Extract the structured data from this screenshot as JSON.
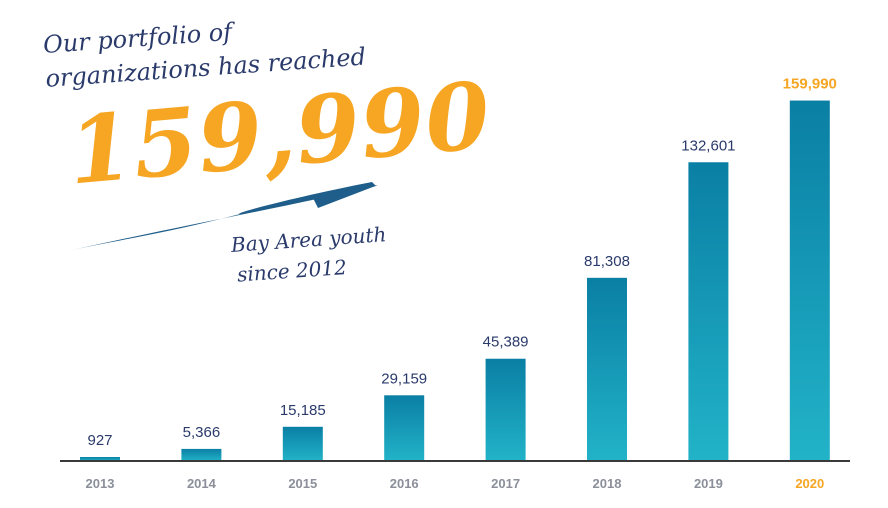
{
  "headline": {
    "intro_line1": "Our portfolio of",
    "intro_line2": "organizations has reached",
    "big_number": "159,990",
    "tail_line1": "Bay Area youth",
    "tail_line2": "since 2012"
  },
  "colors": {
    "bar_top": "#0a7fa4",
    "bar_bottom": "#22b3c8",
    "highlight": "#f6a623",
    "text_dark": "#2a3a6b",
    "tick_gray": "#8a8f9a",
    "axis": "#3a3a3a"
  },
  "chart_data": {
    "type": "bar",
    "categories": [
      "2013",
      "2014",
      "2015",
      "2016",
      "2017",
      "2018",
      "2019",
      "2020"
    ],
    "values": [
      927,
      5366,
      15185,
      29159,
      45389,
      81308,
      132601,
      159990
    ],
    "value_labels": [
      "927",
      "5,366",
      "15,185",
      "29,159",
      "45,389",
      "81,308",
      "132,601",
      "159,990"
    ],
    "highlight_category": "2020",
    "title": "",
    "xlabel": "",
    "ylabel": "",
    "ylim": [
      0,
      170000
    ],
    "grid": false,
    "legend": "none"
  }
}
